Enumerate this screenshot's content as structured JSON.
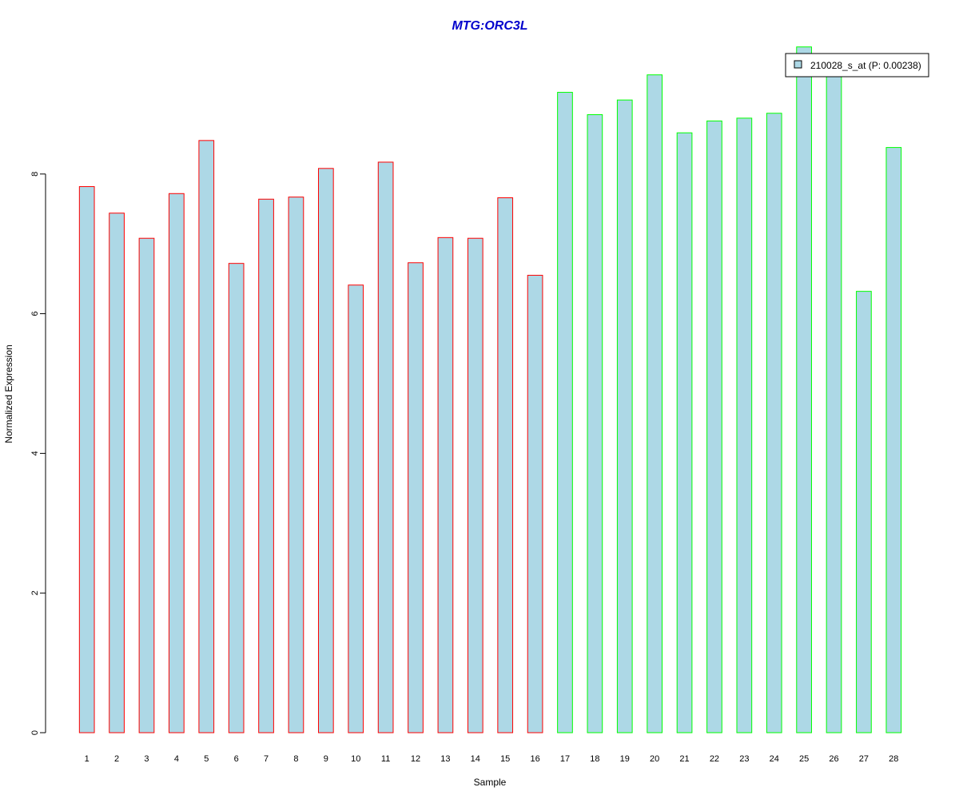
{
  "chart_data": {
    "type": "bar",
    "title": "MTG:ORC3L",
    "title_color": "#0000CC",
    "xlabel": "Sample",
    "ylabel": "Normalized Expression",
    "categories": [
      "1",
      "2",
      "3",
      "4",
      "5",
      "6",
      "7",
      "8",
      "9",
      "10",
      "11",
      "12",
      "13",
      "14",
      "15",
      "16",
      "17",
      "18",
      "19",
      "20",
      "21",
      "22",
      "23",
      "24",
      "25",
      "26",
      "27",
      "28"
    ],
    "yticks": [
      0,
      2,
      4,
      6,
      8
    ],
    "ylim": [
      0,
      9.85
    ],
    "series": [
      {
        "name": "210028_s_at (P: 0.00238)",
        "fill_color": "#ADD8E6",
        "values": [
          7.82,
          7.44,
          7.08,
          7.72,
          8.48,
          6.72,
          7.64,
          7.67,
          8.08,
          6.41,
          8.17,
          6.73,
          7.09,
          7.08,
          7.66,
          6.55,
          9.17,
          8.85,
          9.06,
          9.42,
          8.59,
          8.76,
          8.8,
          8.87,
          9.82,
          9.4,
          6.32,
          8.38
        ]
      }
    ],
    "bar_border_colors": [
      "#FF0000",
      "#FF0000",
      "#FF0000",
      "#FF0000",
      "#FF0000",
      "#FF0000",
      "#FF0000",
      "#FF0000",
      "#FF0000",
      "#FF0000",
      "#FF0000",
      "#FF0000",
      "#FF0000",
      "#FF0000",
      "#FF0000",
      "#FF0000",
      "#00FF00",
      "#00FF00",
      "#00FF00",
      "#00FF00",
      "#00FF00",
      "#00FF00",
      "#00FF00",
      "#00FF00",
      "#00FF00",
      "#00FF00",
      "#00FF00",
      "#00FF00"
    ],
    "legend_placement": "top-right",
    "grid": false
  }
}
